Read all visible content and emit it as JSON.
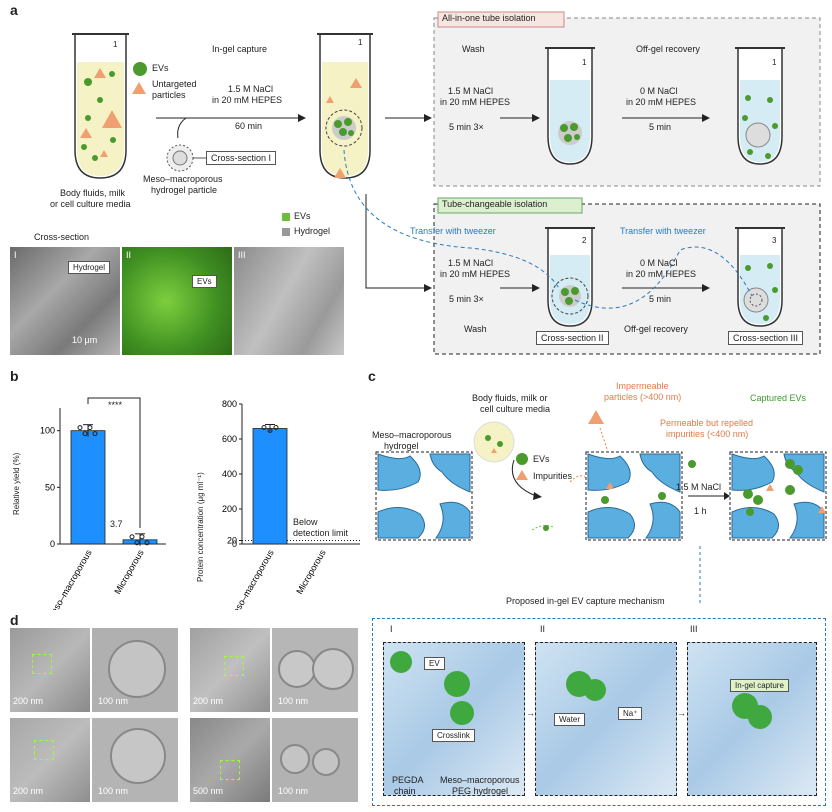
{
  "panels": {
    "a": "a",
    "b": "b",
    "c": "c",
    "d": "d"
  },
  "panel_a": {
    "tube_number": "1",
    "legend_evs": "EVs",
    "legend_untargeted_1": "Untargeted",
    "legend_untargeted_2": "particles",
    "step_title": "In-gel capture",
    "cond1": "1.5 M NaCl",
    "cond2": "in 20 mM HEPES",
    "time": "60 min",
    "cross_section_1": "Cross-section I",
    "particle_label_1": "Meso–macroporous",
    "particle_label_2": "hydrogel particle",
    "source_1": "Body fluids, milk",
    "source_2": "or cell culture media",
    "allinone_title": "All-in-one tube isolation",
    "wash": "Wash",
    "offgel": "Off-gel recovery",
    "wash_cond1": "1.5 M NaCl",
    "wash_cond2": "in 20 mM HEPES",
    "wash_time": "5 min 3×",
    "off_cond1": "0 M NaCl",
    "off_cond2": "in 20 mM HEPES",
    "off_time": "5 min",
    "tube1": "1",
    "tube2": "2",
    "tube3": "3",
    "tubechange_title": "Tube-changeable isolation",
    "transfer": "Transfer with tweezer",
    "cross_section_2": "Cross-section II",
    "cross_section_3": "Cross-section III",
    "legend2_evs": "EVs",
    "legend2_hydrogel": "Hydrogel",
    "micrograph_title": "Cross-section",
    "roman_1": "I",
    "roman_2": "II",
    "roman_3": "III",
    "label_hydrogel": "Hydrogel",
    "label_evs": "EVs",
    "scale": "10 μm"
  },
  "chart_data": [
    {
      "type": "bar",
      "categories": [
        "Meso–macroporous",
        "Microporous"
      ],
      "values": [
        100,
        3.7
      ],
      "ylabel": "Relative yield (%)",
      "ylim": [
        0,
        120
      ],
      "yticks": [
        "0",
        "50",
        "100"
      ],
      "annotation": "3.7",
      "significance": "****",
      "color": "#1e8fff"
    },
    {
      "type": "bar",
      "categories": [
        "Meso–macroporous",
        "Microporous"
      ],
      "values": [
        660,
        null
      ],
      "ylabel": "Protein concentration (μg ml⁻¹)",
      "ylim": [
        0,
        800
      ],
      "yticks": [
        "0",
        "20",
        "200",
        "400",
        "600",
        "800"
      ],
      "annotation_1": "Below",
      "annotation_2": "detection limit",
      "color": "#1e8fff"
    }
  ],
  "panel_c": {
    "left_1": "Meso–macroporous",
    "left_2": "hydrogel",
    "src_1": "Body fluids, milk or",
    "src_2": "cell culture media",
    "evs": "EVs",
    "impurities": "Impurities",
    "imp_1": "Impermeable",
    "imp_2": "particles (>400 nm)",
    "perm_1": "Permeable but repelled",
    "perm_2": "impurities (<400 nm)",
    "captured": "Captured EVs",
    "nacl": "1.5 M NaCl",
    "time": "1 h",
    "mechanism": "Proposed in-gel EV capture mechanism",
    "roman_1": "I",
    "roman_2": "II",
    "roman_3": "III",
    "ev": "EV",
    "crosslink": "Crosslink",
    "water": "Water",
    "na": "Na⁺",
    "ingel": "In-gel capture",
    "pegda_1": "PEGDA",
    "pegda_2": "chain",
    "peg_1": "Meso–macroporous",
    "peg_2": "PEG hydrogel"
  },
  "panel_d": {
    "s200a": "200 nm",
    "s100a": "100 nm",
    "s200b": "200 nm",
    "s100b": "100 nm",
    "s200c": "200 nm",
    "s100c": "100 nm",
    "s500": "500 nm",
    "s100d": "100 nm"
  },
  "colors": {
    "ev_green": "#4a9a2e",
    "triangle": "#f0a070",
    "bar_blue": "#1e8fff",
    "hydrogel_blue": "#5aafe0",
    "dash_blue": "#2a7abf"
  }
}
